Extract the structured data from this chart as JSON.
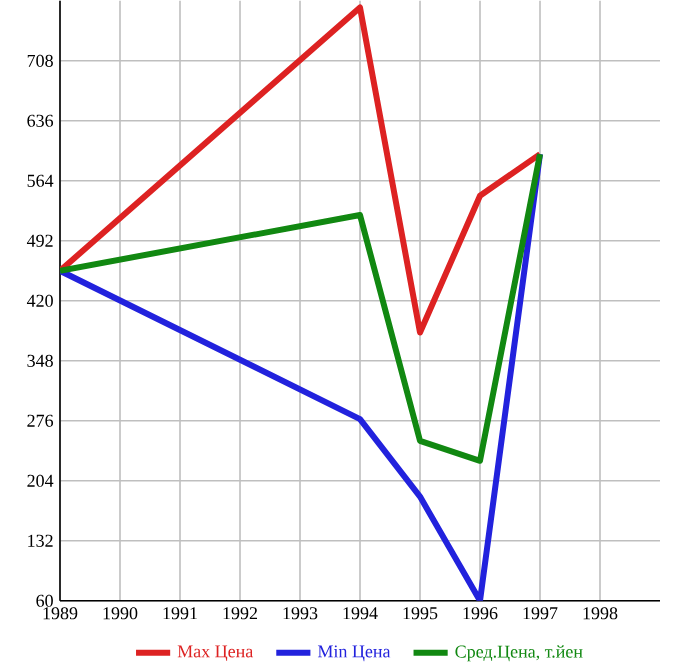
{
  "chart_data": {
    "type": "line",
    "x": [
      1989,
      1994,
      1995,
      1996,
      1997
    ],
    "series": [
      {
        "name": "Max Цена",
        "color": "#dd2222",
        "values": [
          456,
          772,
          382,
          546,
          596
        ]
      },
      {
        "name": "Min Цена",
        "color": "#2222dd",
        "values": [
          456,
          278,
          185,
          60,
          596
        ]
      },
      {
        "name": "Сред.Цена, т.йен",
        "color": "#118811",
        "values": [
          456,
          523,
          252,
          228,
          596
        ]
      }
    ],
    "xlim": [
      1989,
      1999
    ],
    "xticks": [
      1989,
      1990,
      1991,
      1992,
      1993,
      1994,
      1995,
      1996,
      1997,
      1998
    ],
    "ylim": [
      60,
      780
    ],
    "yticks": [
      60,
      132,
      204,
      276,
      348,
      420,
      492,
      564,
      636,
      708
    ],
    "grid": true,
    "legend": "bottom",
    "marker": "none",
    "line_style": "solid"
  }
}
